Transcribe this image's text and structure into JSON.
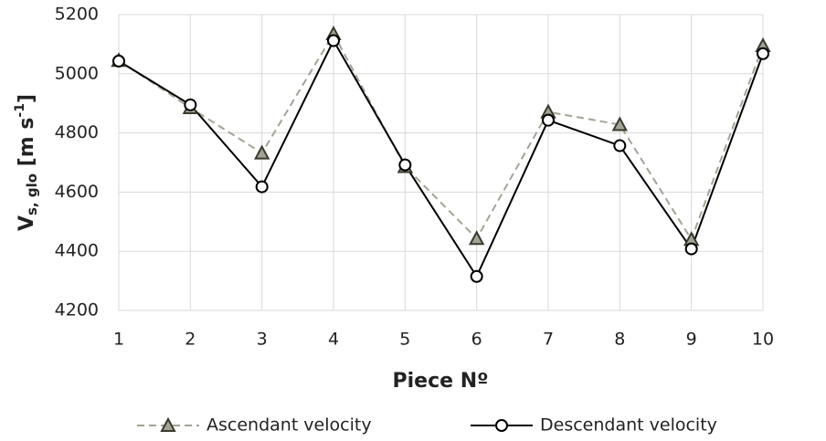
{
  "chart_data": {
    "type": "line",
    "x_label": "Piece Nº",
    "y_label_parts": [
      "V",
      "s, glo",
      " [m s",
      "-1",
      "]"
    ],
    "x": [
      1,
      2,
      3,
      4,
      5,
      6,
      7,
      8,
      9,
      10
    ],
    "xlim": [
      1,
      10
    ],
    "xticks": [
      1,
      2,
      3,
      4,
      5,
      6,
      7,
      8,
      9,
      10
    ],
    "ylim": [
      4200,
      5200
    ],
    "yticks": [
      4200,
      4400,
      4600,
      4800,
      5000,
      5200
    ],
    "grid": true,
    "legend": "bottom",
    "series": [
      {
        "name": "Ascendant velocity",
        "color": "#a3a396",
        "marker": "triangle",
        "dash": true,
        "values": [
          5045,
          4885,
          4732,
          5135,
          4686,
          4443,
          4871,
          4828,
          4440,
          5095
        ]
      },
      {
        "name": "Descendant velocity",
        "color": "#000000",
        "marker": "circle",
        "dash": false,
        "values": [
          5043,
          4895,
          4618,
          5112,
          4692,
          4315,
          4843,
          4757,
          4408,
          5068
        ]
      }
    ]
  }
}
